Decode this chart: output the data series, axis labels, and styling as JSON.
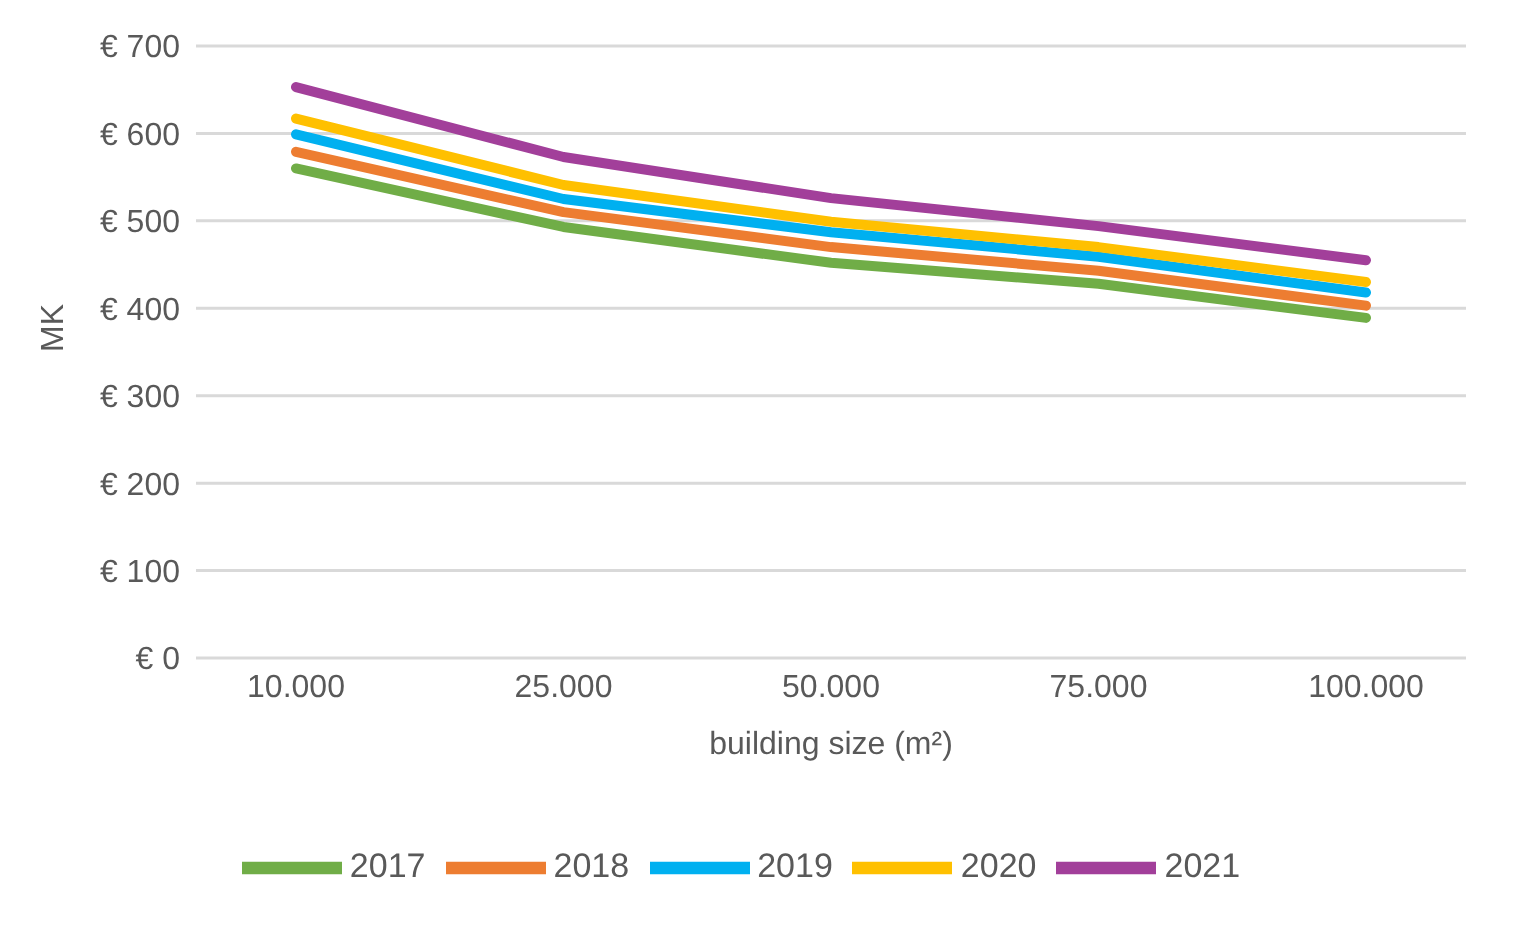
{
  "chart_data": {
    "type": "line",
    "xlabel": "building size (m²)",
    "ylabel": "MK",
    "categories": [
      "10.000",
      "25.000",
      "50.000",
      "75.000",
      "100.000"
    ],
    "series": [
      {
        "name": "2017",
        "color": "#70ad47",
        "values": [
          560,
          493,
          452,
          428,
          389
        ]
      },
      {
        "name": "2018",
        "color": "#ed7d31",
        "values": [
          579,
          510,
          470,
          443,
          403
        ]
      },
      {
        "name": "2019",
        "color": "#00b0f0",
        "values": [
          599,
          525,
          487,
          459,
          418
        ]
      },
      {
        "name": "2020",
        "color": "#ffc000",
        "values": [
          617,
          541,
          499,
          470,
          430
        ]
      },
      {
        "name": "2021",
        "color": "#a23f9a",
        "values": [
          653,
          573,
          526,
          494,
          455
        ]
      }
    ],
    "ylim": [
      0,
      700
    ],
    "yticks": [
      {
        "value": 0,
        "label": "€ 0"
      },
      {
        "value": 100,
        "label": "€ 100"
      },
      {
        "value": 200,
        "label": "€ 200"
      },
      {
        "value": 300,
        "label": "€ 300"
      },
      {
        "value": 400,
        "label": "€ 400"
      },
      {
        "value": 500,
        "label": "€ 500"
      },
      {
        "value": 600,
        "label": "€ 600"
      },
      {
        "value": 700,
        "label": "€ 700"
      }
    ],
    "grid": "y",
    "legend": "bottom",
    "marker": "none",
    "line_style": "solid"
  }
}
